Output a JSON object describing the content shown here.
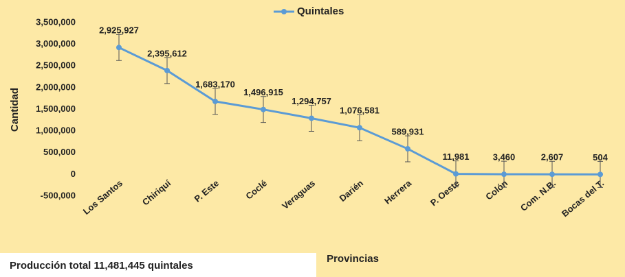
{
  "chart_data": {
    "type": "line",
    "x_label": "Provincias",
    "y_label": "Cantidad",
    "categories": [
      "Los Santos",
      "Chiriquí",
      "P. Este",
      "Coclé",
      "Veraguas",
      "Darién",
      "Herrera",
      "P. Oeste",
      "Colón",
      "Com. N.B.",
      "Bocas del T."
    ],
    "series": [
      {
        "name": "Quintales",
        "color": "#5b9bd5",
        "values": [
          2925927,
          2395612,
          1683170,
          1496915,
          1294757,
          1076581,
          589931,
          11981,
          3460,
          2607,
          504
        ],
        "value_labels": [
          "2,925,927",
          "2,395,612",
          "1,683,170",
          "1,496,915",
          "1,294,757",
          "1,076,581",
          "589,931",
          "11,981",
          "3,460",
          "2,607",
          "504"
        ],
        "errors": [
          300000,
          300000,
          300000,
          300000,
          300000,
          300000,
          300000,
          300000,
          300000,
          300000,
          300000
        ]
      }
    ],
    "ylim": [
      -500000,
      3500000
    ],
    "yticks": [
      {
        "value": -500000,
        "label": "-500,000"
      },
      0,
      {
        "value": 500000,
        "label": "500,000"
      },
      {
        "value": 1000000,
        "label": "1,000,000"
      },
      {
        "value": 1500000,
        "label": "1,500,000"
      },
      {
        "value": 2000000,
        "label": "2,000,000"
      },
      {
        "value": 2500000,
        "label": "2,500,000"
      },
      {
        "value": 3000000,
        "label": "3,000,000"
      },
      {
        "value": 3500000,
        "label": "3,500,000"
      }
    ],
    "legend": "top",
    "note": "Producción total 11,481,445 quintales"
  }
}
